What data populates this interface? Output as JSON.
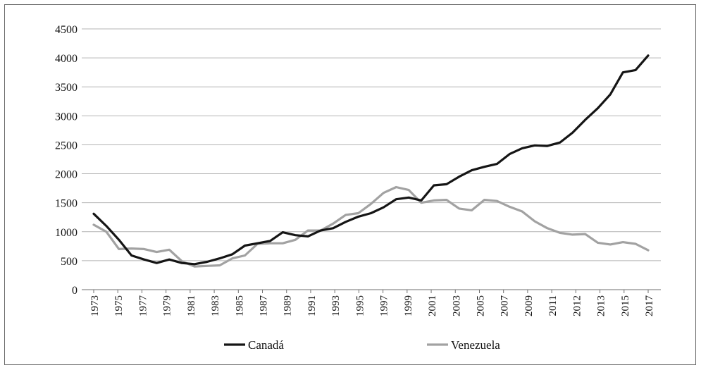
{
  "chart_data": {
    "type": "line",
    "title": "",
    "xlabel": "",
    "ylabel": "",
    "ylim": [
      0,
      4500
    ],
    "y_ticks": [
      0,
      500,
      1000,
      1500,
      2000,
      2500,
      3000,
      3500,
      4000,
      4500
    ],
    "x_tick_labels": [
      "1973",
      "1975",
      "1977",
      "1979",
      "1981",
      "1983",
      "1985",
      "1987",
      "1989",
      "1991",
      "1993",
      "1995",
      "1997",
      "1999",
      "2001",
      "2003",
      "2005",
      "2007",
      "2009",
      "2011",
      "2012",
      "2013",
      "2015",
      "2017"
    ],
    "grid": "horizontal",
    "legend_position": "bottom",
    "series": [
      {
        "name": "Canadá",
        "color": "#151515",
        "values": [
          1310,
          1100,
          860,
          590,
          520,
          460,
          520,
          460,
          440,
          480,
          540,
          610,
          760,
          800,
          840,
          990,
          940,
          920,
          1020,
          1060,
          1170,
          1260,
          1320,
          1420,
          1560,
          1590,
          1540,
          1800,
          1820,
          1950,
          2060,
          2120,
          2170,
          2340,
          2440,
          2490,
          2480,
          2540,
          2710,
          2930,
          3130,
          3370,
          3750,
          3790,
          4040
        ]
      },
      {
        "name": "Venezuela",
        "color": "#a2a2a2",
        "values": [
          1120,
          1000,
          700,
          710,
          700,
          650,
          690,
          490,
          400,
          410,
          420,
          540,
          590,
          790,
          800,
          800,
          860,
          1020,
          1020,
          1140,
          1290,
          1320,
          1480,
          1670,
          1770,
          1720,
          1500,
          1540,
          1550,
          1400,
          1370,
          1550,
          1530,
          1430,
          1350,
          1180,
          1060,
          980,
          950,
          960,
          810,
          780,
          820,
          790,
          680
        ]
      }
    ]
  }
}
